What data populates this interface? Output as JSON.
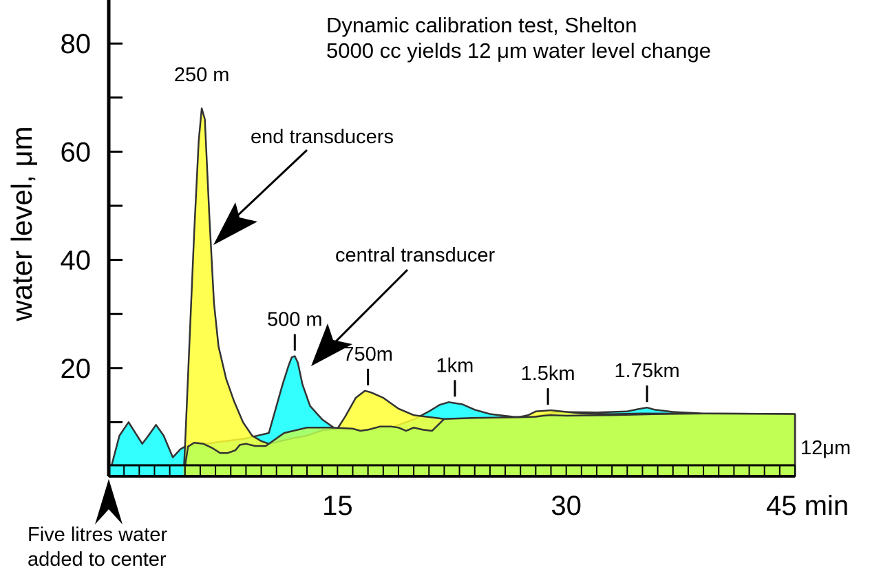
{
  "chart_data": {
    "type": "area",
    "title_lines": [
      "Dynamic calibration test, Shelton",
      "5000 cc yields 12 μm water level change"
    ],
    "ylabel": "water level, μm",
    "x_unit": "min",
    "xlim": [
      0,
      45
    ],
    "ylim": [
      -2,
      90
    ],
    "x_ticks": [
      15,
      30,
      45
    ],
    "x_tick_labels": [
      "15",
      "30",
      "45 min"
    ],
    "y_ticks": [
      20,
      40,
      60,
      80
    ],
    "y_tick_labels": [
      "20",
      "40",
      "60",
      "80"
    ],
    "grid": false,
    "legend": "none",
    "series": [
      {
        "color": "#33ffff",
        "x": [
          0,
          0.7,
          1.3,
          2.2,
          2.6,
          3.1,
          3.6,
          4.2,
          4.7,
          5.0,
          9.0,
          10.5,
          11.0,
          11.4,
          11.8,
          12.0,
          12.2,
          12.4,
          12.7,
          13.2,
          14.0,
          15.0,
          16.0,
          17.0,
          18.5,
          20.0,
          21.0,
          21.7,
          22.3,
          23.2,
          24.0,
          25.0,
          26.5,
          27.5,
          28.0,
          29.5,
          32.0,
          34.0,
          34.7,
          35.3,
          35.8,
          37.0,
          39.0,
          45.0
        ],
        "y": [
          0,
          7.5,
          10,
          6,
          7.5,
          9.5,
          7.5,
          3.5,
          5,
          5.5,
          7,
          8,
          13,
          17,
          20.5,
          22,
          22.2,
          21,
          17,
          13,
          10.5,
          8.5,
          8.5,
          8.5,
          9.0,
          10.5,
          12.0,
          13.2,
          13.7,
          13.3,
          12.3,
          11.5,
          11.0,
          10.8,
          11.1,
          11.9,
          11.8,
          12.0,
          12.4,
          12.7,
          12.3,
          11.9,
          11.6,
          11.5
        ]
      },
      {
        "color": "#ffff33",
        "x": [
          4.9,
          5.0,
          5.6,
          5.9,
          6.1,
          6.3,
          6.6,
          6.9,
          7.2,
          7.7,
          8.2,
          8.8,
          9.4,
          10.0,
          10.5,
          12.0,
          13.0,
          14.0,
          15.0,
          15.5,
          16.2,
          16.8,
          17.2,
          18.0,
          19.0,
          20.0,
          22.0,
          24.0,
          27.0,
          27.5,
          28.0,
          29.0,
          31.0,
          33.0,
          35.0,
          45.0
        ],
        "y": [
          0,
          5.5,
          45,
          62,
          68,
          66,
          48,
          32,
          24,
          18,
          14,
          10,
          7.5,
          6.5,
          6.0,
          7.0,
          7.5,
          8.5,
          8.8,
          11,
          14.5,
          15.8,
          15.5,
          14.5,
          12.5,
          11.3,
          10.6,
          10.7,
          11.0,
          11.3,
          12.0,
          12.2,
          11.6,
          11.5,
          11.6,
          11.5
        ]
      },
      {
        "color": "#bbff55",
        "x": [
          4.9,
          5.2,
          5.6,
          6.2,
          6.8,
          7.3,
          7.8,
          8.3,
          8.6,
          9.0,
          9.6,
          10.3,
          11.5,
          13.0,
          14.5,
          16.0,
          16.5,
          17.0,
          17.8,
          18.5,
          19.0,
          19.5,
          20.0,
          20.6,
          21.2,
          22.0,
          24.0,
          27.0,
          28.0,
          28.5,
          29.0,
          30.0,
          33.0,
          36.0,
          39.0,
          45.0
        ],
        "y": [
          0,
          5.5,
          6.2,
          6.0,
          5.2,
          4.3,
          4.3,
          4.8,
          5.8,
          6.0,
          5.6,
          5.6,
          8.0,
          9.0,
          9.0,
          8.8,
          8.4,
          8.6,
          9.2,
          9.2,
          9.0,
          8.4,
          9.0,
          8.6,
          8.4,
          10.6,
          10.8,
          10.9,
          11.0,
          11.2,
          11.3,
          11.2,
          11.3,
          11.5,
          11.6,
          11.5
        ]
      }
    ],
    "peak_labels": [
      {
        "text": "250 m",
        "x": 6.1,
        "y": 71,
        "tick": false
      },
      {
        "text": "500 m",
        "x": 12.2,
        "y": 22.2,
        "tick": true
      },
      {
        "text": "750m",
        "x": 17.0,
        "y": 15.8,
        "tick": true
      },
      {
        "text": "1km",
        "x": 22.7,
        "y": 13.7,
        "tick": true
      },
      {
        "text": "1.5km",
        "x": 28.8,
        "y": 12.2,
        "tick": true
      },
      {
        "text": "1.75km",
        "x": 35.3,
        "y": 12.7,
        "tick": true
      }
    ],
    "annotations": {
      "end_transducers": "end transducers",
      "central_transducer": "central transducer",
      "twelve_um": "12μm",
      "five_litres": [
        "Five litres water",
        "added to center"
      ]
    }
  }
}
